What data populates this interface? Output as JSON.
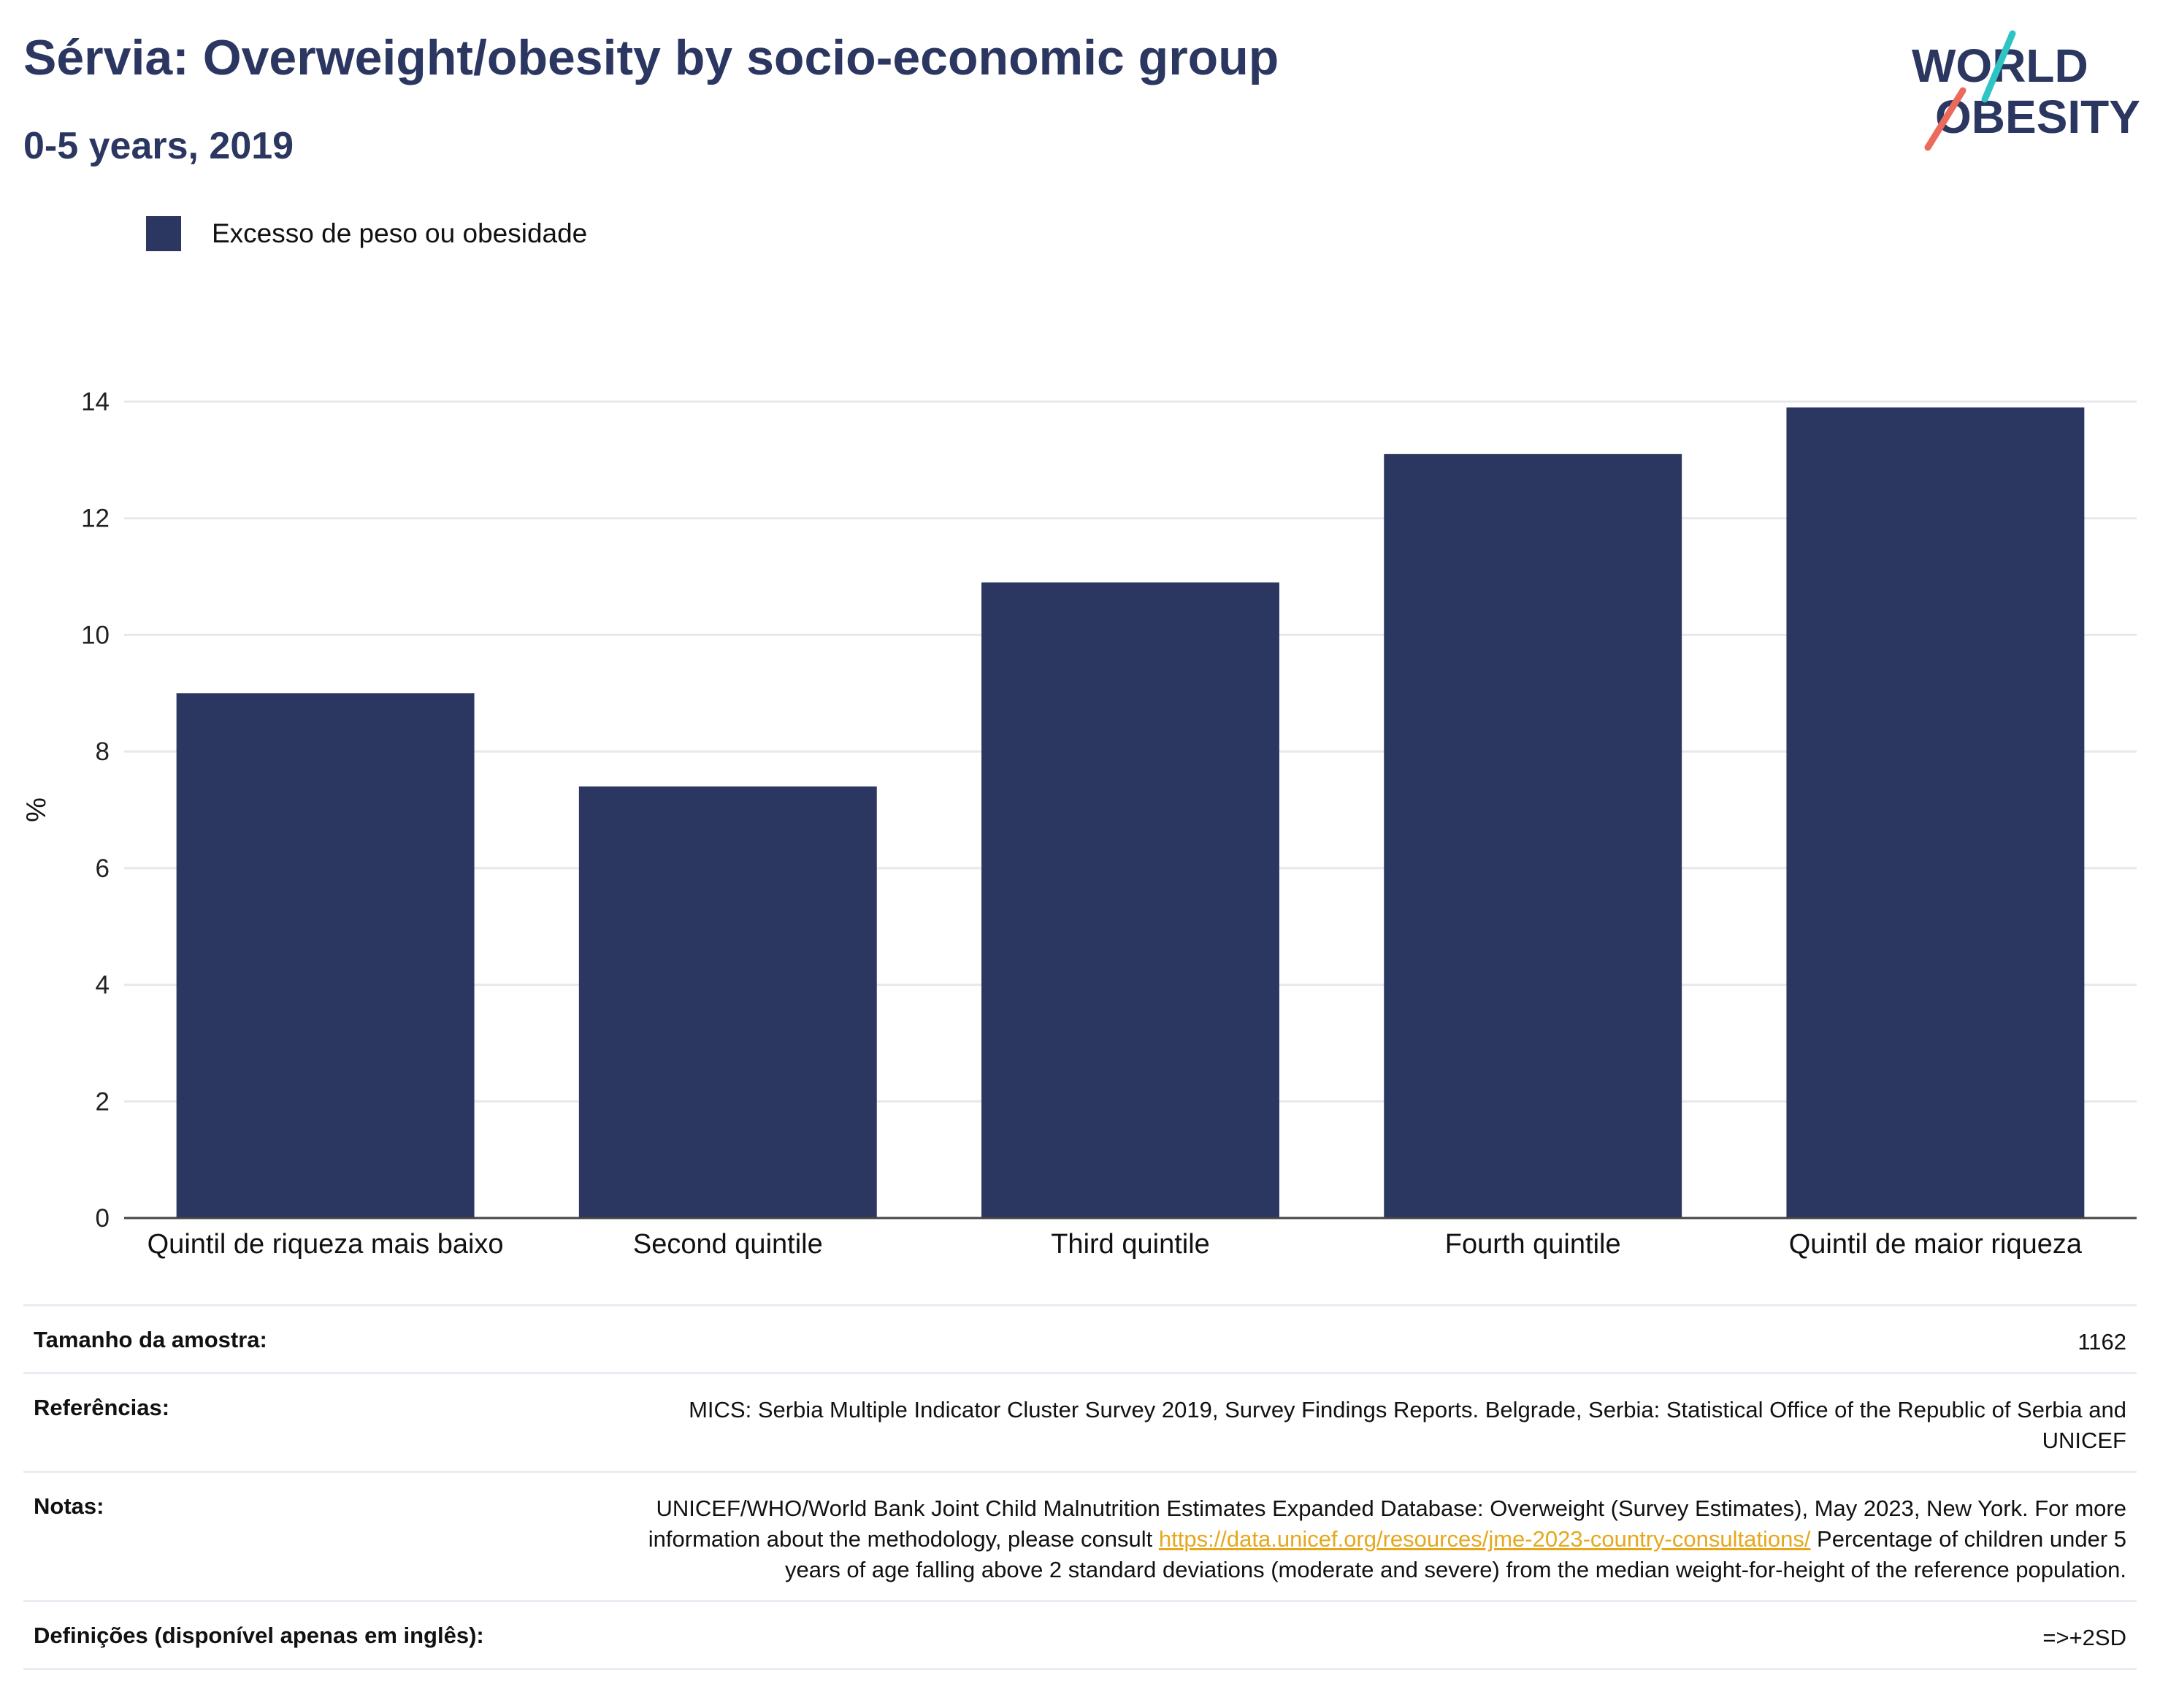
{
  "header": {
    "title": "Sérvia: Overweight/obesity by socio-economic group",
    "subtitle": "0-5 years, 2019"
  },
  "logo": {
    "line1": "WORLD",
    "line2": "OBESITY"
  },
  "colors": {
    "bar": "#2b3661",
    "title": "#2b3661",
    "link": "#e5a81d",
    "logo_teal": "#2ec4c4",
    "logo_coral": "#ec6a5c"
  },
  "legend": {
    "label": "Excesso de peso ou obesidade"
  },
  "chart_data": {
    "type": "bar",
    "categories": [
      "Quintil de riqueza mais baixo",
      "Second quintile",
      "Third quintile",
      "Fourth quintile",
      "Quintil de maior riqueza"
    ],
    "series": [
      {
        "name": "Excesso de peso ou obesidade",
        "values": [
          9.0,
          7.4,
          10.9,
          13.1,
          13.9
        ]
      }
    ],
    "ylabel": "%",
    "ylim": [
      0,
      14
    ],
    "yticks": [
      0,
      2,
      4,
      6,
      8,
      10,
      12,
      14
    ],
    "grid": true,
    "legend_position": "top-left"
  },
  "meta": {
    "sample_label": "Tamanho da amostra:",
    "sample_value": "1162",
    "references_label": "Referências:",
    "references_value": "MICS: Serbia Multiple Indicator Cluster Survey 2019, Survey Findings Reports. Belgrade, Serbia: Statistical Office of the Republic of Serbia and UNICEF",
    "notes_label": "Notas:",
    "notes_text1": "UNICEF/WHO/World Bank Joint Child Malnutrition Estimates Expanded Database: Overweight (Survey Estimates), May 2023, New York. For more information about the methodology, please consult ",
    "notes_link": "https://data.unicef.org/resources/jme-2023-country-consultations/",
    "notes_text2": " Percentage of children under 5 years of age falling above 2 standard deviations (moderate and severe) from the median weight-for-height of the reference population.",
    "definitions_label": "Definições (disponível apenas em inglês):",
    "definitions_value": "=>+2SD"
  }
}
